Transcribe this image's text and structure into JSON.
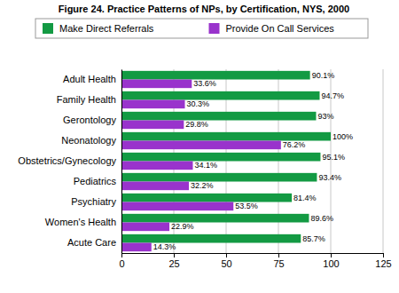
{
  "chart_data": {
    "type": "bar",
    "title": "Figure 24. Practice Patterns of NPs, by Certification, NYS, 2000",
    "orientation": "horizontal",
    "categories": [
      "Adult Health",
      "Family Health",
      "Gerontology",
      "Neonatology",
      "Obstetrics/Gynecology",
      "Pediatrics",
      "Psychiatry",
      "Women's Health",
      "Acute Care"
    ],
    "series": [
      {
        "name": "Make Direct Referrals",
        "color": "#139a43",
        "values": [
          90.1,
          94.7,
          93,
          100,
          95.1,
          93.4,
          81.4,
          89.6,
          85.7
        ],
        "value_labels": [
          "90.1%",
          "94.7%",
          "93%",
          "100%",
          "95.1%",
          "93.4%",
          "81.4%",
          "89.6%",
          "85.7%"
        ]
      },
      {
        "name": "Provide On Call Services",
        "color": "#9933cc",
        "values": [
          33.6,
          30.3,
          29.8,
          76.2,
          34.1,
          32.2,
          53.5,
          22.9,
          14.3
        ],
        "value_labels": [
          "33.6%",
          "30.3%",
          "29.8%",
          "76.2%",
          "34.1%",
          "32.2%",
          "53.5%",
          "22.9%",
          "14.3%"
        ]
      }
    ],
    "xlim": [
      0,
      125
    ],
    "xticks": [
      0,
      25,
      50,
      75,
      100,
      125
    ],
    "grid": true,
    "legend": "top",
    "data_labels": true
  }
}
